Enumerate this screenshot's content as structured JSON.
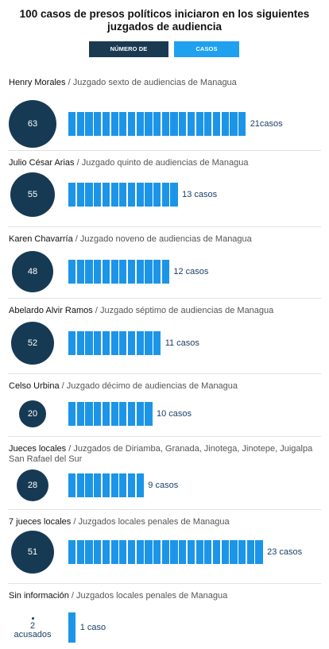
{
  "title": "100 casos de presos políticos iniciaron en los siguientes juzgados de audiencia",
  "buttons": {
    "acusados": "NÚMERO DE ACUSADOS",
    "casos": "CASOS ATENDIDOS"
  },
  "colors": {
    "circle": "#173a54",
    "bar": "#1c95e8",
    "button_dark": "#1a3a52",
    "button_light": "#1fa1f0"
  },
  "chart_data": {
    "type": "bar",
    "title": "100 casos de presos políticos iniciaron en los siguientes juzgados de audiencia",
    "series": [
      {
        "name": "NÚMERO DE ACUSADOS",
        "values": [
          63,
          55,
          48,
          52,
          20,
          28,
          51,
          2
        ]
      },
      {
        "name": "CASOS ATENDIDOS",
        "values": [
          21,
          13,
          12,
          11,
          10,
          9,
          23,
          1
        ]
      }
    ],
    "rows": [
      {
        "judge": "Henry Morales",
        "court": "Juzgado sexto de audiencias de Managua",
        "accused": 63,
        "accused_label": "63",
        "cases": 21,
        "cases_label": "21casos"
      },
      {
        "judge": "Julio César Arias",
        "court": "Juzgado quinto de audiencias de Managua",
        "accused": 55,
        "accused_label": "55",
        "cases": 13,
        "cases_label": "13 casos"
      },
      {
        "judge": "Karen Chavarría",
        "court": "Juzgado noveno de audiencias de Managua",
        "accused": 48,
        "accused_label": "48",
        "cases": 12,
        "cases_label": "12 casos"
      },
      {
        "judge": "Abelardo Alvir Ramos",
        "court": "Juzgado séptimo de audiencias de Managua",
        "accused": 52,
        "accused_label": "52",
        "cases": 11,
        "cases_label": "11 casos"
      },
      {
        "judge": "Celso Urbina",
        "court": "Juzgado décimo de audiencias de Managua",
        "accused": 20,
        "accused_label": "20",
        "cases": 10,
        "cases_label": "10 casos"
      },
      {
        "judge": "Jueces locales",
        "court": "Juzgados de Diriamba, Granada, Jinotega, Jinotepe, Juigalpa San Rafael del Sur",
        "accused": 28,
        "accused_label": "28",
        "cases": 9,
        "cases_label": "9 casos"
      },
      {
        "judge": "7 jueces locales",
        "court": "Juzgados locales penales de Managua",
        "accused": 51,
        "accused_label": "51",
        "cases": 23,
        "cases_label": "23 casos"
      },
      {
        "judge": "Sin información",
        "court": "Juzgados locales penales de Managua",
        "accused": 2,
        "accused_label": "2\nacusados",
        "cases": 1,
        "cases_label": "1 caso"
      }
    ]
  }
}
